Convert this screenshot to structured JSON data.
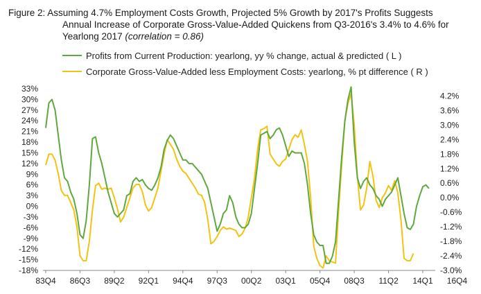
{
  "title": {
    "line1": "Figure 2: Assuming 4.7% Employment Costs Growth, Projected 5% Growth by 2017's Profits Suggests",
    "line2": "Annual Increase of Corporate Gross-Value-Added Quickens from Q3-2016's 3.4% to 4.6% for",
    "line3_main": "Yearlong 2017 ",
    "line3_corr": "(correlation = 0.86)"
  },
  "colors": {
    "profits": "#5fa83e",
    "gva": "#f2c311",
    "axis": "#888888"
  },
  "chart_data": {
    "type": "line",
    "x_tick_labels": [
      "83Q4",
      "86Q3",
      "89Q2",
      "92Q1",
      "94Q4",
      "97Q3",
      "00Q2",
      "03Q1",
      "05Q4",
      "08Q3",
      "11Q2",
      "14Q1",
      "16Q4"
    ],
    "y_left": {
      "ticks": [
        "33%",
        "30%",
        "27%",
        "24%",
        "21%",
        "18%",
        "15%",
        "12%",
        "9%",
        "6%",
        "3%",
        "0%",
        "-3%",
        "-6%",
        "-9%",
        "-12%",
        "-15%",
        "-18%"
      ],
      "range": [
        -18,
        33
      ]
    },
    "y_right": {
      "ticks": [
        "4.2%",
        "3.6%",
        "3.0%",
        "2.4%",
        "1.8%",
        "1.2%",
        "0.6%",
        "0.0%",
        "-0.6%",
        "-1.2%",
        "-1.8%",
        "-2.4%",
        "-3.0%"
      ],
      "range": [
        -3.0,
        4.5
      ]
    },
    "series": [
      {
        "name": "Profits from Current Production: yearlong, yy % change, actual & predicted ( L )",
        "axis": "left",
        "start_index": 0,
        "values": [
          22,
          29,
          30,
          27,
          20,
          13,
          8,
          7,
          4,
          2,
          -2,
          -8,
          -9,
          -4,
          6,
          19,
          19.5,
          15,
          12,
          8,
          4,
          1,
          -2,
          -3,
          -2,
          -1,
          3,
          3.5,
          7,
          8,
          7,
          7.5,
          6,
          5,
          4.5,
          6,
          8,
          11,
          16,
          18.5,
          20,
          19,
          17,
          15,
          13,
          13,
          12,
          12,
          11,
          10,
          9,
          7,
          5,
          1,
          -3,
          -7,
          -5,
          -2,
          -1,
          3,
          1,
          -3,
          -5,
          -6,
          -6,
          -5,
          -2,
          5,
          12,
          20,
          20.5,
          21,
          19,
          20,
          21.5,
          22,
          20,
          17,
          14,
          15.5,
          15,
          15,
          15,
          12,
          6,
          -2,
          -8,
          -10,
          -11,
          -11,
          -16,
          -16,
          -14,
          -10,
          2,
          14,
          24,
          30,
          33.5,
          18,
          8,
          5,
          7,
          8,
          6,
          5,
          3,
          2,
          0,
          2,
          3,
          4,
          6,
          8,
          3,
          -2,
          -6,
          -6.5,
          -5,
          0,
          3,
          5.5,
          6,
          5
        ]
      },
      {
        "name": "Corporate Gross-Value-Added less Employment Costs: yearlong, % pt difference ( R )",
        "axis": "right",
        "start_index": 0,
        "values": [
          1.35,
          1.8,
          1.8,
          1.55,
          1.0,
          0.3,
          0.1,
          0.1,
          -0.2,
          -0.5,
          -1.2,
          -2.4,
          -2.6,
          -2.6,
          -1.8,
          -0.5,
          0.5,
          0.6,
          0.35,
          0.4,
          0.35,
          0.4,
          0.0,
          -0.45,
          -1.0,
          -0.8,
          -0.4,
          0.0,
          0.4,
          0.55,
          0.55,
          0.25,
          -0.3,
          -0.55,
          -0.4,
          0.0,
          0.4,
          1.1,
          1.8,
          2.4,
          2.2,
          2.0,
          1.6,
          1.3,
          1.1,
          1.0,
          0.8,
          0.6,
          0.4,
          0.15,
          0.1,
          -0.2,
          -0.9,
          -1.9,
          -1.8,
          -1.6,
          -1.35,
          -1.2,
          -1.3,
          -1.25,
          -1.3,
          -1.35,
          -1.6,
          -1.5,
          -1.25,
          -0.8,
          0.0,
          0.8,
          2.0,
          2.8,
          2.85,
          2.95,
          1.8,
          1.6,
          1.4,
          1.3,
          1.5,
          1.6,
          2.0,
          2.4,
          2.6,
          2.5,
          2.8,
          2.2,
          1.5,
          0.0,
          -2.0,
          -2.5,
          -2.8,
          -2.9,
          -2.4,
          -2.6,
          -2.65,
          -2.7,
          -0.5,
          1.4,
          3.2,
          3.9,
          4.3,
          3.0,
          0.9,
          -0.5,
          -0.3,
          0.4,
          1.5,
          0.9,
          -0.1,
          -0.4,
          0.0,
          0.2,
          0.5,
          0.3,
          0.7,
          0.2,
          -0.9,
          -2.5,
          -2.6,
          -2.6,
          -2.3
        ]
      }
    ]
  }
}
